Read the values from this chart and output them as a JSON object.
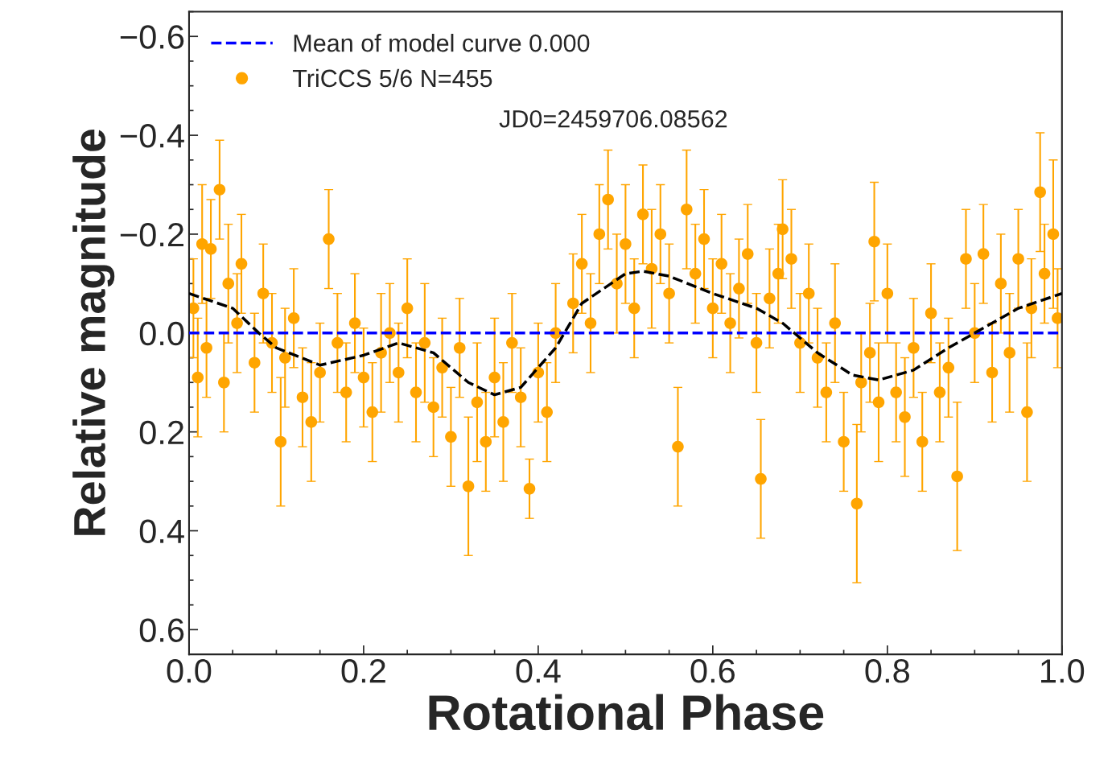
{
  "chart_data": {
    "type": "scatter",
    "xlabel": "Rotational Phase",
    "ylabel": "Relative magnitude",
    "xlim": [
      0,
      1
    ],
    "ylim": [
      0.65,
      -0.65
    ],
    "xticks": [
      {
        "value": 0,
        "label": "0.0"
      },
      0.2,
      0.4,
      0.6,
      0.8,
      {
        "value": 1,
        "label": "1.0"
      }
    ],
    "yticks": [
      {
        "value": -0.6,
        "label": "−0.6"
      },
      {
        "value": -0.4,
        "label": "−0.4"
      },
      {
        "value": -0.2,
        "label": "−0.2"
      },
      {
        "value": 0,
        "label": "0.0"
      },
      0.2,
      0.4,
      0.6
    ],
    "grid": false,
    "legend": "top left",
    "marker": "circle",
    "annotations": [
      "JD0=2459706.08562"
    ],
    "series": [
      {
        "name": "Mean of model curve 0.000",
        "type": "line",
        "color": "#0000ff",
        "line_style": "dashed",
        "marker": "none",
        "x": [
          0,
          1
        ],
        "values": [
          0,
          0
        ]
      },
      {
        "type": "line",
        "color": "#000000",
        "line_style": "dashed",
        "marker": "none",
        "x": [
          0,
          0.05,
          0.08,
          0.1,
          0.15,
          0.2,
          0.24,
          0.28,
          0.32,
          0.35,
          0.38,
          0.42,
          0.45,
          0.5,
          0.52,
          0.55,
          0.6,
          0.65,
          0.68,
          0.72,
          0.76,
          0.79,
          0.83,
          0.87,
          0.9,
          0.95,
          1.0
        ],
        "values": [
          -0.08,
          -0.05,
          0,
          0.03,
          0.065,
          0.045,
          0.02,
          0.04,
          0.1,
          0.125,
          0.11,
          0.03,
          -0.06,
          -0.12,
          -0.125,
          -0.115,
          -0.08,
          -0.05,
          -0.02,
          0.04,
          0.085,
          0.095,
          0.075,
          0.03,
          0,
          -0.05,
          -0.08
        ]
      },
      {
        "name": "TriCCS 5/6 N=455",
        "color": "#ffa500",
        "x": [
          0.005,
          0.01,
          0.015,
          0.02,
          0.025,
          0.035,
          0.04,
          0.045,
          0.055,
          0.06,
          0.075,
          0.085,
          0.095,
          0.105,
          0.11,
          0.12,
          0.13,
          0.14,
          0.15,
          0.16,
          0.17,
          0.18,
          0.19,
          0.2,
          0.21,
          0.22,
          0.23,
          0.24,
          0.25,
          0.26,
          0.27,
          0.28,
          0.29,
          0.3,
          0.31,
          0.32,
          0.33,
          0.34,
          0.35,
          0.36,
          0.37,
          0.38,
          0.39,
          0.4,
          0.41,
          0.42,
          0.44,
          0.45,
          0.46,
          0.47,
          0.48,
          0.49,
          0.5,
          0.51,
          0.52,
          0.53,
          0.54,
          0.55,
          0.56,
          0.57,
          0.58,
          0.59,
          0.6,
          0.61,
          0.62,
          0.63,
          0.64,
          0.65,
          0.655,
          0.665,
          0.675,
          0.68,
          0.69,
          0.7,
          0.71,
          0.72,
          0.73,
          0.74,
          0.75,
          0.765,
          0.77,
          0.78,
          0.785,
          0.79,
          0.8,
          0.81,
          0.82,
          0.83,
          0.84,
          0.85,
          0.86,
          0.87,
          0.88,
          0.89,
          0.9,
          0.91,
          0.92,
          0.93,
          0.94,
          0.95,
          0.96,
          0.965,
          0.975,
          0.98,
          0.99,
          0.995
        ],
        "values": [
          -0.05,
          0.09,
          -0.18,
          0.03,
          -0.17,
          -0.29,
          0.1,
          -0.1,
          -0.02,
          -0.14,
          0.06,
          -0.08,
          0.02,
          0.22,
          0.05,
          -0.03,
          0.13,
          0.18,
          0.08,
          -0.19,
          0.02,
          0.12,
          -0.02,
          0.09,
          0.16,
          0.04,
          0.0,
          0.08,
          -0.05,
          0.12,
          0.02,
          0.15,
          0.07,
          0.21,
          0.03,
          0.31,
          0.14,
          0.22,
          0.09,
          0.18,
          0.02,
          0.13,
          0.315,
          0.08,
          0.16,
          0.0,
          -0.06,
          -0.14,
          -0.02,
          -0.2,
          -0.27,
          -0.1,
          -0.18,
          -0.05,
          -0.24,
          -0.13,
          -0.2,
          -0.08,
          0.23,
          -0.25,
          -0.12,
          -0.19,
          -0.05,
          -0.14,
          -0.02,
          -0.09,
          -0.16,
          0.02,
          0.295,
          -0.07,
          -0.12,
          -0.21,
          -0.15,
          0.02,
          -0.08,
          0.05,
          0.12,
          -0.02,
          0.22,
          0.345,
          0.1,
          0.04,
          -0.185,
          0.14,
          -0.08,
          0.12,
          0.17,
          0.03,
          0.22,
          -0.04,
          0.12,
          0.07,
          0.29,
          -0.15,
          0.0,
          -0.16,
          0.08,
          -0.1,
          0.04,
          -0.15,
          0.16,
          -0.05,
          -0.285,
          -0.12,
          -0.2,
          -0.03
        ],
        "errors": [
          0.1,
          0.12,
          0.12,
          0.1,
          0.1,
          0.1,
          0.1,
          0.12,
          0.1,
          0.1,
          0.1,
          0.1,
          0.1,
          0.13,
          0.1,
          0.1,
          0.1,
          0.12,
          0.1,
          0.1,
          0.1,
          0.1,
          0.1,
          0.1,
          0.1,
          0.12,
          0.1,
          0.1,
          0.1,
          0.1,
          0.12,
          0.1,
          0.1,
          0.1,
          0.1,
          0.14,
          0.12,
          0.1,
          0.12,
          0.12,
          0.1,
          0.1,
          0.06,
          0.1,
          0.1,
          0.1,
          0.1,
          0.1,
          0.1,
          0.1,
          0.1,
          0.1,
          0.12,
          0.1,
          0.1,
          0.12,
          0.1,
          0.1,
          0.12,
          0.12,
          0.1,
          0.1,
          0.1,
          0.1,
          0.1,
          0.1,
          0.1,
          0.1,
          0.12,
          0.1,
          0.1,
          0.1,
          0.1,
          0.1,
          0.1,
          0.1,
          0.1,
          0.12,
          0.1,
          0.16,
          0.1,
          0.1,
          0.12,
          0.12,
          0.1,
          0.1,
          0.12,
          0.1,
          0.1,
          0.1,
          0.1,
          0.1,
          0.15,
          0.1,
          0.1,
          0.1,
          0.1,
          0.1,
          0.12,
          0.1,
          0.14,
          0.1,
          0.12,
          0.1,
          0.15,
          0.1
        ]
      }
    ]
  }
}
